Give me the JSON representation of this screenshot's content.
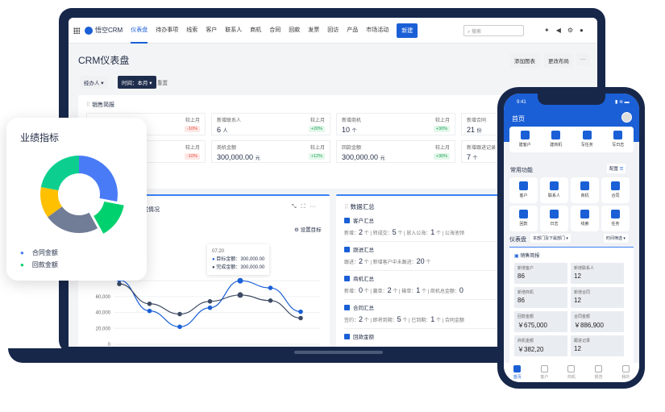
{
  "nav": {
    "app_name": "悟空CRM",
    "items": [
      "仪表盘",
      "待办事项",
      "线索",
      "客户",
      "联系人",
      "商机",
      "合同",
      "回款",
      "发票",
      "回访",
      "产品",
      "市场活动"
    ],
    "new_button": "新建",
    "search_placeholder": "搜索"
  },
  "header": {
    "title": "CRM仪表盘",
    "add_chart": "添加图表",
    "change_layout": "更改布局",
    "more": "···"
  },
  "filters": {
    "owner": "经办人",
    "time": "时间：本月",
    "reset": "重置"
  },
  "sales_brief": {
    "title": "销售简报",
    "compare_label": "较上月",
    "cards": [
      {
        "label": "",
        "value": "",
        "change": "-10%",
        "trend": "neg"
      },
      {
        "label": "新增联系人",
        "value": "6",
        "unit": "人",
        "change": "+20%",
        "trend": "pos"
      },
      {
        "label": "新增商机",
        "value": "10",
        "unit": "个",
        "change": "+30%",
        "trend": "pos"
      },
      {
        "label": "新增合同",
        "value": "21",
        "unit": "份",
        "change": "",
        "trend": ""
      },
      {
        "label": "",
        "value": "",
        "change": "-10%",
        "trend": "neg"
      },
      {
        "label": "商机金额",
        "value": "300,000.00",
        "unit": "元",
        "change": "+12%",
        "trend": "pos"
      },
      {
        "label": "回款金额",
        "value": "300,000.00",
        "unit": "元",
        "change": "+30%",
        "trend": "pos"
      },
      {
        "label": "新增跟进记录",
        "value": "7",
        "unit": "个",
        "change": "",
        "trend": ""
      }
    ]
  },
  "goal_chart": {
    "title_fragment": "成情况",
    "set_goal": "设置目标",
    "tooltip": {
      "date": "07.20",
      "target_label": "目标金额：",
      "target_value": "300,000.00",
      "done_label": "完成金额：",
      "done_value": "300,000.00"
    }
  },
  "chart_data": {
    "type": "line",
    "yticks": [
      "0",
      "20,000",
      "40,000",
      "60,000"
    ],
    "ylim": [
      0,
      90000
    ],
    "grid": true,
    "series": [
      {
        "name": "目标金额",
        "color": "#1a5fd6",
        "values": [
          81000,
          42000,
          22000,
          46000,
          80000,
          71000,
          41000
        ]
      },
      {
        "name": "完成金额",
        "color": "#3d4a63",
        "values": [
          76000,
          51000,
          38000,
          54000,
          62000,
          55000,
          33000
        ]
      }
    ]
  },
  "data_summary": {
    "title": "数据汇总",
    "sections": [
      {
        "title": "客户汇总",
        "items": [
          [
            "新增：",
            "2",
            "个"
          ],
          [
            "转成交：",
            "5",
            "个"
          ],
          [
            "放入公海：",
            "1",
            "个"
          ],
          [
            "公海池领",
            "",
            " "
          ]
        ]
      },
      {
        "title": "跟进汇总",
        "items": [
          [
            "跟进：",
            "2",
            "个"
          ],
          [
            "新增客户中未跟进：",
            "20",
            "个"
          ]
        ]
      },
      {
        "title": "商机汇总",
        "items": [
          [
            "新增：",
            "0",
            "个"
          ],
          [
            "赢单：",
            "2",
            "个"
          ],
          [
            "输单：",
            "1",
            "个"
          ],
          [
            "商机总金额：",
            "0",
            ""
          ]
        ]
      },
      {
        "title": "合同汇总",
        "items": [
          [
            "签约：",
            "2",
            "个"
          ],
          [
            "即将到期：",
            "5",
            "个"
          ],
          [
            "已到期：",
            "1",
            "个"
          ],
          [
            "合同金额",
            "",
            " "
          ]
        ]
      },
      {
        "title": "回款金额",
        "items": []
      }
    ]
  },
  "kpi": {
    "title": "业绩指标",
    "legend": [
      {
        "label": "合同金额",
        "color": "#4a7bf7"
      },
      {
        "label": "回款金额",
        "color": "#00d16f"
      }
    ],
    "slices": [
      {
        "value": 28,
        "color": "#4a7bf7"
      },
      {
        "value": 14,
        "color": "#00d16f",
        "exploded": true
      },
      {
        "value": 23,
        "color": "#717c96"
      },
      {
        "value": 13,
        "color": "#ffc000"
      },
      {
        "value": 22,
        "color": "#0ccf8f"
      }
    ]
  },
  "phone": {
    "time": "9:41",
    "title": "首页",
    "quick": [
      "建客户",
      "建商机",
      "写任务",
      "写日志"
    ],
    "common_title": "常用功能",
    "config": "配置",
    "functions": [
      "客户",
      "联系人",
      "商机",
      "合同",
      "回款",
      "日志",
      "线索",
      "任务"
    ],
    "dashboard": "仪表盘",
    "dept_filter": "本部门及下属部门",
    "time_filter": "时间筛选",
    "brief_title": "销售简报",
    "stats": [
      {
        "label": "新增客户",
        "value": "86"
      },
      {
        "label": "新增联系人",
        "value": "12"
      },
      {
        "label": "新增商机",
        "value": "86"
      },
      {
        "label": "新增合同",
        "value": "12"
      },
      {
        "label": "回款金额",
        "value": "￥675,000"
      },
      {
        "label": "合同金额",
        "value": "￥886,900"
      },
      {
        "label": "商机金额",
        "value": "￥382,20"
      },
      {
        "label": "跟进记录",
        "value": "12"
      }
    ],
    "tabs": [
      "首页",
      "客户",
      "商机",
      "报告",
      "我的"
    ]
  }
}
